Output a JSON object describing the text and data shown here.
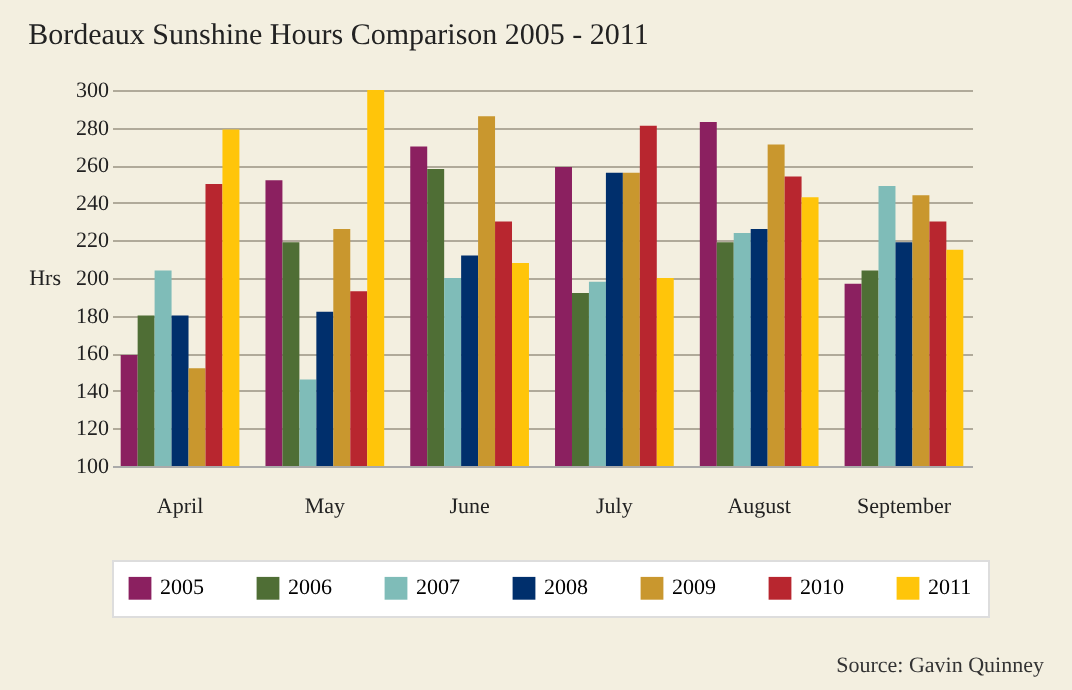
{
  "chart_data": {
    "type": "bar",
    "title": "Bordeaux Sunshine Hours Comparison 2005 - 2011",
    "ylabel": "Hrs",
    "categories": [
      "April",
      "May",
      "June",
      "July",
      "August",
      "September"
    ],
    "series": [
      {
        "name": "2005",
        "color": "#8b2060",
        "values": [
          159,
          252,
          270,
          259,
          283,
          197
        ]
      },
      {
        "name": "2006",
        "color": "#4f6e35",
        "values": [
          180,
          219,
          258,
          192,
          219,
          204
        ]
      },
      {
        "name": "2007",
        "color": "#7fbcb8",
        "values": [
          204,
          146,
          200,
          198,
          224,
          249
        ]
      },
      {
        "name": "2008",
        "color": "#002f6c",
        "values": [
          180,
          182,
          212,
          256,
          226,
          219
        ]
      },
      {
        "name": "2009",
        "color": "#c9972e",
        "values": [
          152,
          226,
          286,
          256,
          271,
          244
        ]
      },
      {
        "name": "2010",
        "color": "#b8262f",
        "values": [
          250,
          193,
          230,
          281,
          254,
          230
        ]
      },
      {
        "name": "2011",
        "color": "#ffc50a",
        "values": [
          279,
          300,
          208,
          200,
          243,
          215
        ]
      }
    ],
    "ylim": [
      100,
      300
    ],
    "yticks": [
      100,
      120,
      140,
      160,
      180,
      200,
      220,
      240,
      260,
      280,
      300
    ],
    "grid": "y",
    "legend": "bottom",
    "annotations": [
      "Source: Gavin Quinney"
    ]
  }
}
